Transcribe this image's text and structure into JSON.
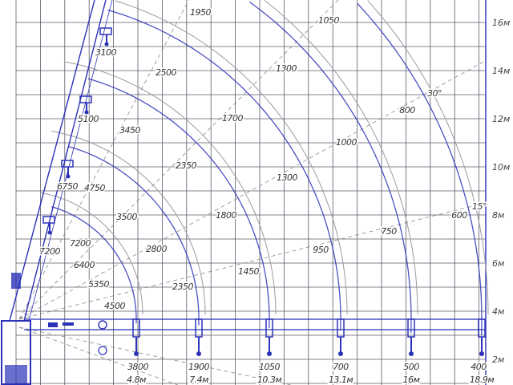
{
  "y_axis_labels": [
    "16м",
    "14м",
    "12м",
    "10м",
    "8м",
    "6м",
    "4м",
    "2м"
  ],
  "angle_labels": [
    "30°",
    "15°"
  ],
  "extensions": [
    {
      "reach": "4.8м",
      "loads": [
        "3800",
        "4500",
        "5350",
        "6400",
        "7200"
      ]
    },
    {
      "reach": "7.4м",
      "loads": [
        "1900",
        "2350",
        "2800",
        "3500",
        "4750"
      ]
    },
    {
      "reach": "10.3м",
      "loads": [
        "1050",
        "1450",
        "1800",
        "2350",
        "3450"
      ]
    },
    {
      "reach": "13.1м",
      "loads": [
        "700",
        "950",
        "1300",
        "1700",
        "2500"
      ]
    },
    {
      "reach": "16м",
      "loads": [
        "500",
        "750",
        "1000",
        "1300",
        "1950"
      ]
    },
    {
      "reach": "18.9м",
      "loads": [
        "400",
        "600",
        "800",
        "1050"
      ]
    }
  ],
  "boom_labels": [
    "3100",
    "5100",
    "6750",
    "7200"
  ],
  "colors": {
    "drawing": "#2b32b8",
    "grid": "#5a5a6a",
    "arc": "#9a9aa0",
    "text": "#333333"
  }
}
